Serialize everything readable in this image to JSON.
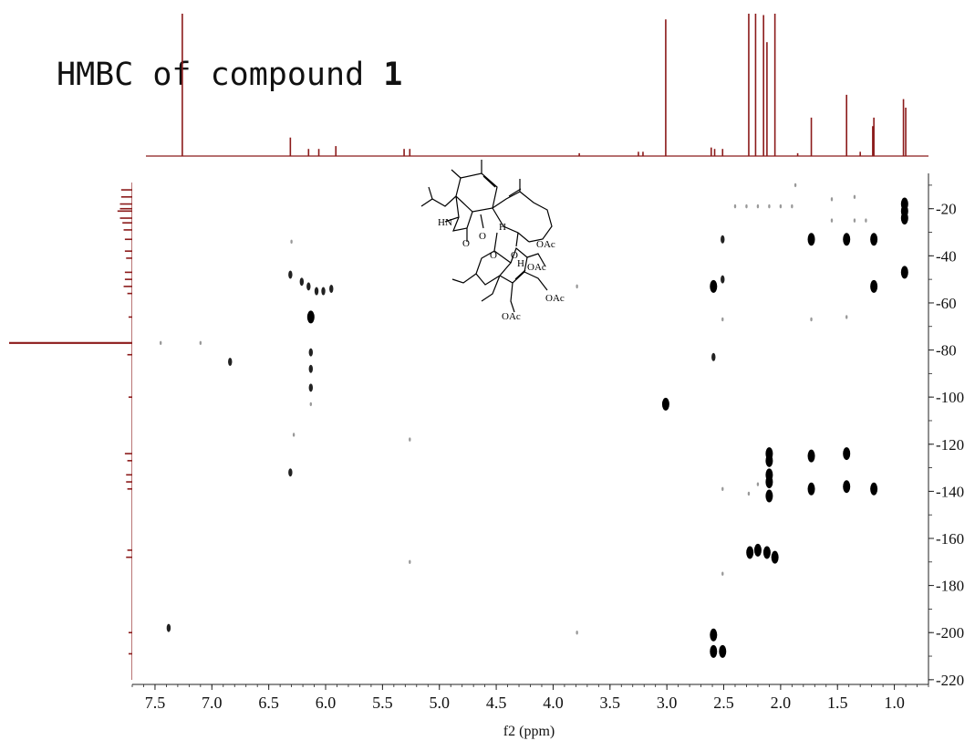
{
  "title": {
    "text": "HMBC of compound ",
    "number": "1"
  },
  "colors": {
    "projection": "#8b1a1a",
    "cross_peak": "#000000",
    "axis": "#222222"
  },
  "chart_data": {
    "type": "scatter",
    "title": "HMBC of compound 1",
    "xlabel": "f2 (ppm)",
    "ylabel": "",
    "xlim": [
      7.7,
      0.7
    ],
    "ylim": [
      5,
      222
    ],
    "x_reversed": true,
    "x_ticks": [
      {
        "v": 7.5,
        "label": "7.5"
      },
      {
        "v": 7.0,
        "label": "7.0"
      },
      {
        "v": 6.5,
        "label": "6.5"
      },
      {
        "v": 6.0,
        "label": "6.0"
      },
      {
        "v": 5.5,
        "label": "5.5"
      },
      {
        "v": 5.0,
        "label": "5.0"
      },
      {
        "v": 4.5,
        "label": "4.5"
      },
      {
        "v": 4.0,
        "label": "4.0"
      },
      {
        "v": 3.5,
        "label": "3.5"
      },
      {
        "v": 3.0,
        "label": "3.0"
      },
      {
        "v": 2.5,
        "label": "2.5"
      },
      {
        "v": 2.0,
        "label": "2.0"
      },
      {
        "v": 1.5,
        "label": "1.5"
      },
      {
        "v": 1.0,
        "label": "1.0"
      }
    ],
    "y_ticks": [
      {
        "v": 20,
        "label": "20"
      },
      {
        "v": 40,
        "label": "40"
      },
      {
        "v": 60,
        "label": "60"
      },
      {
        "v": 80,
        "label": "80"
      },
      {
        "v": 100,
        "label": "100"
      },
      {
        "v": 120,
        "label": "120"
      },
      {
        "v": 140,
        "label": "140"
      },
      {
        "v": 160,
        "label": "160"
      },
      {
        "v": 180,
        "label": "180"
      },
      {
        "v": 200,
        "label": "200"
      },
      {
        "v": 220,
        "label": "220"
      }
    ],
    "cross_peaks": [
      {
        "x": 0.91,
        "y": 18
      },
      {
        "x": 0.91,
        "y": 21
      },
      {
        "x": 0.91,
        "y": 24
      },
      {
        "x": 0.91,
        "y": 47
      },
      {
        "x": 1.18,
        "y": 33
      },
      {
        "x": 1.18,
        "y": 53
      },
      {
        "x": 1.18,
        "y": 139
      },
      {
        "x": 1.42,
        "y": 33
      },
      {
        "x": 1.42,
        "y": 124
      },
      {
        "x": 1.42,
        "y": 138
      },
      {
        "x": 1.73,
        "y": 33
      },
      {
        "x": 1.73,
        "y": 125
      },
      {
        "x": 1.73,
        "y": 139
      },
      {
        "x": 2.1,
        "y": 124
      },
      {
        "x": 2.1,
        "y": 127
      },
      {
        "x": 2.1,
        "y": 133
      },
      {
        "x": 2.1,
        "y": 136
      },
      {
        "x": 2.1,
        "y": 142
      },
      {
        "x": 2.05,
        "y": 168
      },
      {
        "x": 2.12,
        "y": 166
      },
      {
        "x": 2.2,
        "y": 165
      },
      {
        "x": 2.27,
        "y": 166
      },
      {
        "x": 2.59,
        "y": 53
      },
      {
        "x": 2.59,
        "y": 201
      },
      {
        "x": 2.59,
        "y": 208
      },
      {
        "x": 2.51,
        "y": 208
      },
      {
        "x": 3.01,
        "y": 103
      },
      {
        "x": 6.13,
        "y": 66
      }
    ],
    "weak_peaks": [
      {
        "x": 6.31,
        "y": 48
      },
      {
        "x": 6.21,
        "y": 51
      },
      {
        "x": 6.15,
        "y": 53
      },
      {
        "x": 6.08,
        "y": 55
      },
      {
        "x": 6.02,
        "y": 55
      },
      {
        "x": 5.95,
        "y": 54
      },
      {
        "x": 6.13,
        "y": 81
      },
      {
        "x": 6.13,
        "y": 88
      },
      {
        "x": 6.13,
        "y": 96
      },
      {
        "x": 6.84,
        "y": 85
      },
      {
        "x": 7.38,
        "y": 198
      },
      {
        "x": 2.51,
        "y": 33
      },
      {
        "x": 2.59,
        "y": 83
      },
      {
        "x": 2.51,
        "y": 50
      },
      {
        "x": 6.31,
        "y": 132
      }
    ],
    "faint_peaks": [
      {
        "x": 7.45,
        "y": 77
      },
      {
        "x": 7.1,
        "y": 77
      },
      {
        "x": 6.13,
        "y": 103
      },
      {
        "x": 6.28,
        "y": 116
      },
      {
        "x": 5.26,
        "y": 118
      },
      {
        "x": 5.26,
        "y": 170
      },
      {
        "x": 3.79,
        "y": 53
      },
      {
        "x": 3.79,
        "y": 200
      },
      {
        "x": 2.51,
        "y": 67
      },
      {
        "x": 2.51,
        "y": 175
      },
      {
        "x": 2.51,
        "y": 139
      },
      {
        "x": 2.28,
        "y": 141
      },
      {
        "x": 2.2,
        "y": 137
      },
      {
        "x": 1.42,
        "y": 66
      },
      {
        "x": 1.73,
        "y": 67
      },
      {
        "x": 1.35,
        "y": 25
      },
      {
        "x": 1.25,
        "y": 25
      },
      {
        "x": 1.55,
        "y": 25
      },
      {
        "x": 1.55,
        "y": 16
      },
      {
        "x": 1.35,
        "y": 15
      },
      {
        "x": 1.87,
        "y": 10
      },
      {
        "x": 2.4,
        "y": 19
      },
      {
        "x": 2.3,
        "y": 19
      },
      {
        "x": 2.2,
        "y": 19
      },
      {
        "x": 2.1,
        "y": 19
      },
      {
        "x": 2.0,
        "y": 19
      },
      {
        "x": 1.9,
        "y": 19
      },
      {
        "x": 6.3,
        "y": 34
      }
    ],
    "proton_projection": [
      {
        "ppm": 7.26,
        "h": 1.0
      },
      {
        "ppm": 6.31,
        "h": 0.13
      },
      {
        "ppm": 6.15,
        "h": 0.05
      },
      {
        "ppm": 6.06,
        "h": 0.05
      },
      {
        "ppm": 5.91,
        "h": 0.07
      },
      {
        "ppm": 5.31,
        "h": 0.05
      },
      {
        "ppm": 5.26,
        "h": 0.05
      },
      {
        "ppm": 3.77,
        "h": 0.02
      },
      {
        "ppm": 3.25,
        "h": 0.03
      },
      {
        "ppm": 3.21,
        "h": 0.03
      },
      {
        "ppm": 3.01,
        "h": 0.96
      },
      {
        "ppm": 2.61,
        "h": 0.06
      },
      {
        "ppm": 2.58,
        "h": 0.05
      },
      {
        "ppm": 2.51,
        "h": 0.05
      },
      {
        "ppm": 2.28,
        "h": 1.0
      },
      {
        "ppm": 2.22,
        "h": 1.0
      },
      {
        "ppm": 2.15,
        "h": 0.99
      },
      {
        "ppm": 2.12,
        "h": 0.8
      },
      {
        "ppm": 2.05,
        "h": 1.0
      },
      {
        "ppm": 1.73,
        "h": 0.27
      },
      {
        "ppm": 1.42,
        "h": 0.43
      },
      {
        "ppm": 1.19,
        "h": 0.21
      },
      {
        "ppm": 1.18,
        "h": 0.27
      },
      {
        "ppm": 0.92,
        "h": 0.4
      },
      {
        "ppm": 0.9,
        "h": 0.34
      },
      {
        "ppm": 1.85,
        "h": 0.02
      },
      {
        "ppm": 1.3,
        "h": 0.03
      }
    ],
    "carbon_projection": [
      {
        "ppm": 12,
        "h": 0.09
      },
      {
        "ppm": 15,
        "h": 0.09
      },
      {
        "ppm": 18,
        "h": 0.1
      },
      {
        "ppm": 20,
        "h": 0.1
      },
      {
        "ppm": 21,
        "h": 0.12
      },
      {
        "ppm": 24,
        "h": 0.1
      },
      {
        "ppm": 26,
        "h": 0.08
      },
      {
        "ppm": 29,
        "h": 0.07
      },
      {
        "ppm": 33,
        "h": 0.06
      },
      {
        "ppm": 38,
        "h": 0.06
      },
      {
        "ppm": 41,
        "h": 0.05
      },
      {
        "ppm": 47,
        "h": 0.06
      },
      {
        "ppm": 50,
        "h": 0.06
      },
      {
        "ppm": 53,
        "h": 0.07
      },
      {
        "ppm": 56,
        "h": 0.04
      },
      {
        "ppm": 66,
        "h": 0.03
      },
      {
        "ppm": 77,
        "h": 1.0
      },
      {
        "ppm": 82,
        "h": 0.04
      },
      {
        "ppm": 100,
        "h": 0.03
      },
      {
        "ppm": 124,
        "h": 0.06
      },
      {
        "ppm": 127,
        "h": 0.04
      },
      {
        "ppm": 133,
        "h": 0.05
      },
      {
        "ppm": 136,
        "h": 0.05
      },
      {
        "ppm": 139,
        "h": 0.04
      },
      {
        "ppm": 165,
        "h": 0.04
      },
      {
        "ppm": 168,
        "h": 0.05
      },
      {
        "ppm": 200,
        "h": 0.03
      },
      {
        "ppm": 209,
        "h": 0.03
      }
    ],
    "structure_labels": {
      "hn": "HN",
      "o1": "O",
      "h1": "H",
      "o2": "O",
      "oac1": "OAc",
      "o3": "O",
      "h2": "H",
      "oac2": "OAc",
      "oac3": "OAc",
      "oac4": "OAc"
    }
  }
}
